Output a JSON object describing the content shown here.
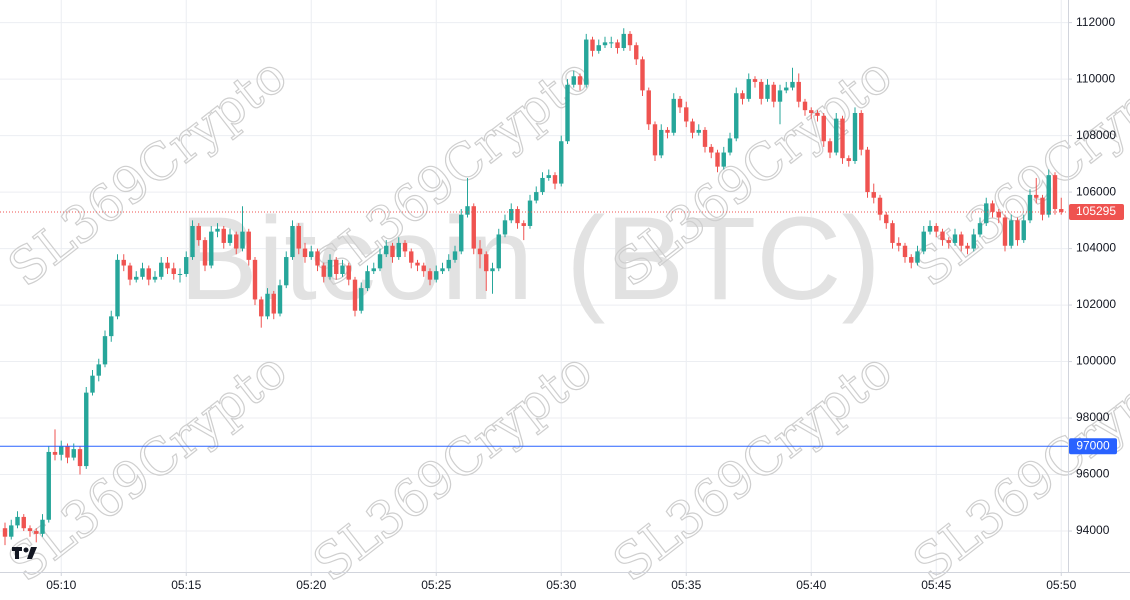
{
  "chart_data": {
    "type": "candlestick",
    "watermark": "Bitcoin (BTC)",
    "watermark_tag": "SL369Crypto",
    "up_color": "#26a69a",
    "down_color": "#ef5350",
    "ylim": [
      92550,
      112800
    ],
    "yticks": [
      94000,
      96000,
      98000,
      100000,
      102000,
      104000,
      106000,
      108000,
      110000,
      112000
    ],
    "grid": true,
    "last_price": 105295,
    "last_price_color": "#ef5350",
    "price_line": 97000,
    "price_line_color": "#2962ff",
    "categories": [
      null,
      null,
      null,
      null,
      null,
      null,
      null,
      null,
      null,
      "05:10",
      null,
      null,
      null,
      null,
      null,
      null,
      null,
      null,
      null,
      null,
      null,
      null,
      null,
      null,
      null,
      null,
      null,
      null,
      null,
      "05:15",
      null,
      null,
      null,
      null,
      null,
      null,
      null,
      null,
      null,
      null,
      null,
      null,
      null,
      null,
      null,
      null,
      null,
      null,
      null,
      "05:20",
      null,
      null,
      null,
      null,
      null,
      null,
      null,
      null,
      null,
      null,
      null,
      null,
      null,
      null,
      null,
      null,
      null,
      null,
      null,
      "05:25",
      null,
      null,
      null,
      null,
      null,
      null,
      null,
      null,
      null,
      null,
      null,
      null,
      null,
      null,
      null,
      null,
      null,
      null,
      null,
      "05:30",
      null,
      null,
      null,
      null,
      null,
      null,
      null,
      null,
      null,
      null,
      null,
      null,
      null,
      null,
      null,
      null,
      null,
      null,
      null,
      "05:35",
      null,
      null,
      null,
      null,
      null,
      null,
      null,
      null,
      null,
      null,
      null,
      null,
      null,
      null,
      null,
      null,
      null,
      null,
      null,
      "05:40",
      null,
      null,
      null,
      null,
      null,
      null,
      null,
      null,
      null,
      null,
      null,
      null,
      null,
      null,
      null,
      null,
      null,
      null,
      null,
      "05:45",
      null,
      null,
      null,
      null,
      null,
      null,
      null,
      null,
      null,
      null,
      null,
      null,
      null,
      null,
      null,
      null,
      null,
      null,
      null,
      "05:50"
    ],
    "candles": [
      [
        94100,
        94300,
        93500,
        93800
      ],
      [
        93800,
        94400,
        93700,
        94200
      ],
      [
        94200,
        94700,
        94100,
        94500
      ],
      [
        94500,
        94600,
        94000,
        94100
      ],
      [
        94100,
        94200,
        93800,
        94000
      ],
      [
        94000,
        94100,
        93600,
        93900
      ],
      [
        93900,
        94600,
        93800,
        94400
      ],
      [
        94400,
        97000,
        94300,
        96800
      ],
      [
        96800,
        97600,
        96500,
        96700
      ],
      [
        96700,
        97200,
        96500,
        97000
      ],
      [
        97000,
        97100,
        96400,
        96600
      ],
      [
        96600,
        97100,
        96500,
        96900
      ],
      [
        96900,
        97000,
        96000,
        96300
      ],
      [
        96300,
        99100,
        96200,
        98900
      ],
      [
        98900,
        99700,
        98800,
        99500
      ],
      [
        99500,
        100100,
        99300,
        99900
      ],
      [
        99900,
        101100,
        99800,
        100900
      ],
      [
        100900,
        101800,
        100700,
        101600
      ],
      [
        101600,
        103800,
        101500,
        103600
      ],
      [
        103600,
        103800,
        103200,
        103400
      ],
      [
        103400,
        103500,
        102700,
        102900
      ],
      [
        102900,
        103200,
        102800,
        103000
      ],
      [
        103000,
        103500,
        102900,
        103300
      ],
      [
        103300,
        103400,
        102700,
        102900
      ],
      [
        102900,
        103200,
        102800,
        103000
      ],
      [
        103000,
        103700,
        102900,
        103500
      ],
      [
        103500,
        103700,
        103100,
        103300
      ],
      [
        103300,
        103500,
        102900,
        103100
      ],
      [
        103100,
        103300,
        102800,
        103100
      ],
      [
        103100,
        103900,
        103000,
        103700
      ],
      [
        103700,
        105000,
        103600,
        104800
      ],
      [
        104800,
        104900,
        104100,
        104300
      ],
      [
        104300,
        104400,
        103200,
        103400
      ],
      [
        103400,
        104800,
        103300,
        104600
      ],
      [
        104600,
        104900,
        104400,
        104700
      ],
      [
        104700,
        104800,
        104000,
        104200
      ],
      [
        104200,
        104700,
        104100,
        104500
      ],
      [
        104500,
        104600,
        103800,
        104000
      ],
      [
        104000,
        105500,
        103900,
        104600
      ],
      [
        104600,
        104700,
        103400,
        103600
      ],
      [
        103600,
        103700,
        102000,
        102200
      ],
      [
        102200,
        102300,
        101200,
        101600
      ],
      [
        101600,
        102600,
        101500,
        102400
      ],
      [
        102400,
        102500,
        101500,
        101700
      ],
      [
        101700,
        102900,
        101600,
        102700
      ],
      [
        102700,
        103900,
        102600,
        103700
      ],
      [
        103700,
        105000,
        103600,
        104800
      ],
      [
        104800,
        104900,
        103800,
        104000
      ],
      [
        104000,
        104200,
        103500,
        103700
      ],
      [
        103700,
        104100,
        103600,
        103900
      ],
      [
        103900,
        104000,
        103200,
        103400
      ],
      [
        103400,
        103500,
        102800,
        103000
      ],
      [
        103000,
        103800,
        102900,
        103600
      ],
      [
        103600,
        103700,
        102900,
        103100
      ],
      [
        103100,
        103600,
        103000,
        103400
      ],
      [
        103400,
        103500,
        102700,
        102900
      ],
      [
        102900,
        103000,
        101600,
        101800
      ],
      [
        101800,
        102800,
        101700,
        102600
      ],
      [
        102600,
        103400,
        102500,
        103200
      ],
      [
        103200,
        103500,
        103100,
        103300
      ],
      [
        103300,
        104000,
        103200,
        103800
      ],
      [
        103800,
        104300,
        103700,
        104100
      ],
      [
        104100,
        104200,
        103500,
        103700
      ],
      [
        103700,
        104400,
        103600,
        104200
      ],
      [
        104200,
        104300,
        103700,
        103900
      ],
      [
        103900,
        104000,
        103300,
        103500
      ],
      [
        103500,
        103600,
        103200,
        103400
      ],
      [
        103400,
        103500,
        103000,
        103200
      ],
      [
        103200,
        103300,
        102700,
        102900
      ],
      [
        102900,
        103400,
        102800,
        103200
      ],
      [
        103200,
        103500,
        103100,
        103300
      ],
      [
        103300,
        103800,
        103200,
        103600
      ],
      [
        103600,
        104100,
        103500,
        103900
      ],
      [
        103900,
        105400,
        103800,
        105200
      ],
      [
        105200,
        106500,
        105100,
        105500
      ],
      [
        105500,
        105600,
        103800,
        104000
      ],
      [
        104000,
        104300,
        103300,
        103800
      ],
      [
        103800,
        103900,
        102500,
        103200
      ],
      [
        103200,
        103500,
        102400,
        103300
      ],
      [
        103300,
        104700,
        103200,
        104500
      ],
      [
        104500,
        105200,
        104400,
        105000
      ],
      [
        105000,
        105600,
        104900,
        105400
      ],
      [
        105400,
        105500,
        104700,
        104900
      ],
      [
        104900,
        105000,
        104300,
        104800
      ],
      [
        104800,
        105900,
        104700,
        105700
      ],
      [
        105700,
        106200,
        105600,
        106000
      ],
      [
        106000,
        106700,
        105900,
        106500
      ],
      [
        106500,
        106800,
        106400,
        106600
      ],
      [
        106600,
        106700,
        106100,
        106300
      ],
      [
        106300,
        108000,
        106200,
        107800
      ],
      [
        107800,
        110000,
        107700,
        109800
      ],
      [
        109800,
        110300,
        109700,
        110100
      ],
      [
        110100,
        110200,
        109600,
        109800
      ],
      [
        109800,
        111600,
        109700,
        111400
      ],
      [
        111400,
        111500,
        110800,
        111000
      ],
      [
        111000,
        111400,
        110900,
        111200
      ],
      [
        111200,
        111500,
        111100,
        111300
      ],
      [
        111300,
        111500,
        111100,
        111300
      ],
      [
        111300,
        111400,
        110900,
        111100
      ],
      [
        111100,
        111800,
        111000,
        111600
      ],
      [
        111600,
        111700,
        111000,
        111200
      ],
      [
        111200,
        111300,
        110500,
        110700
      ],
      [
        110700,
        110800,
        109400,
        109600
      ],
      [
        109600,
        109700,
        108200,
        108400
      ],
      [
        108400,
        108500,
        107100,
        107300
      ],
      [
        107300,
        108400,
        107200,
        108200
      ],
      [
        108200,
        108300,
        107900,
        108100
      ],
      [
        108100,
        109500,
        108000,
        109300
      ],
      [
        109300,
        109400,
        108800,
        109000
      ],
      [
        109000,
        109200,
        108300,
        108500
      ],
      [
        108500,
        108600,
        107900,
        108100
      ],
      [
        108100,
        108400,
        108000,
        108200
      ],
      [
        108200,
        108300,
        107400,
        107600
      ],
      [
        107600,
        107700,
        107200,
        107400
      ],
      [
        107400,
        107500,
        106700,
        106900
      ],
      [
        106900,
        107600,
        106800,
        107400
      ],
      [
        107400,
        108100,
        107300,
        107900
      ],
      [
        107900,
        109700,
        107800,
        109500
      ],
      [
        109500,
        109600,
        109100,
        109300
      ],
      [
        109300,
        110200,
        109200,
        110000
      ],
      [
        110000,
        110100,
        109700,
        109900
      ],
      [
        109900,
        110000,
        109100,
        109300
      ],
      [
        109300,
        110000,
        109200,
        109800
      ],
      [
        109800,
        109900,
        109000,
        109200
      ],
      [
        109200,
        109800,
        108400,
        109600
      ],
      [
        109600,
        109900,
        109500,
        109700
      ],
      [
        109700,
        110400,
        109600,
        109900
      ],
      [
        109900,
        110200,
        109000,
        109200
      ],
      [
        109200,
        109300,
        108700,
        108900
      ],
      [
        108900,
        109000,
        108600,
        108800
      ],
      [
        108800,
        108900,
        108500,
        108700
      ],
      [
        108700,
        108800,
        107600,
        107800
      ],
      [
        107800,
        107900,
        107200,
        107400
      ],
      [
        107400,
        108800,
        107300,
        108600
      ],
      [
        108600,
        108700,
        107000,
        107200
      ],
      [
        107200,
        107300,
        106900,
        107100
      ],
      [
        107100,
        109000,
        107000,
        108800
      ],
      [
        108800,
        108900,
        107300,
        107500
      ],
      [
        107500,
        107600,
        105800,
        106000
      ],
      [
        106000,
        106300,
        105600,
        105800
      ],
      [
        105800,
        105900,
        105000,
        105200
      ],
      [
        105200,
        105300,
        104700,
        104900
      ],
      [
        104900,
        105000,
        104000,
        104200
      ],
      [
        104200,
        104400,
        103900,
        104100
      ],
      [
        104100,
        104200,
        103500,
        103700
      ],
      [
        103700,
        103800,
        103300,
        103500
      ],
      [
        103500,
        104100,
        103400,
        103900
      ],
      [
        103900,
        104800,
        103800,
        104600
      ],
      [
        104600,
        105000,
        104500,
        104800
      ],
      [
        104800,
        104900,
        104400,
        104600
      ],
      [
        104600,
        104700,
        104100,
        104300
      ],
      [
        104300,
        104400,
        104000,
        104200
      ],
      [
        104200,
        104700,
        104100,
        104500
      ],
      [
        104500,
        104600,
        103900,
        104100
      ],
      [
        104100,
        104200,
        103800,
        104000
      ],
      [
        104000,
        104700,
        103900,
        104500
      ],
      [
        104500,
        105100,
        104400,
        104900
      ],
      [
        104900,
        105800,
        104800,
        105600
      ],
      [
        105600,
        105700,
        105100,
        105300
      ],
      [
        105300,
        105400,
        104900,
        105100
      ],
      [
        105100,
        105200,
        103900,
        104100
      ],
      [
        104100,
        105200,
        104000,
        105000
      ],
      [
        105000,
        105100,
        104100,
        104300
      ],
      [
        104300,
        105200,
        104200,
        105000
      ],
      [
        105000,
        106100,
        104900,
        105900
      ],
      [
        105900,
        106500,
        105600,
        105800
      ],
      [
        105800,
        105900,
        105000,
        105200
      ],
      [
        105200,
        106800,
        105100,
        106600
      ],
      [
        106600,
        106700,
        105200,
        105400
      ],
      [
        105400,
        105800,
        105200,
        105295
      ]
    ]
  }
}
